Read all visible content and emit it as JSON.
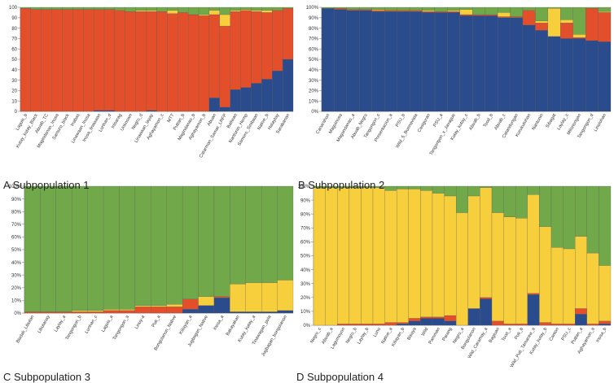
{
  "figure": {
    "colors": {
      "blue": "#2b4c8c",
      "red": "#e24f2a",
      "yellow": "#f7cf3c",
      "green": "#70a84a",
      "axis": "#888888",
      "tick_text": "#333333"
    }
  },
  "chart_data": [
    {
      "type": "bar",
      "stacked": true,
      "caption": "A Subpopulation 1",
      "series_order": [
        "blue",
        "red",
        "yellow",
        "green"
      ],
      "ylim": [
        0,
        100
      ],
      "yticks": [
        0,
        10,
        20,
        30,
        40,
        50,
        60,
        70,
        80,
        90,
        100
      ],
      "ytick_suffix": "",
      "categories": [
        "Laguis_b",
        "Kutay_kutay_Black",
        "Abuab_TC",
        "Magindanao_Inosa",
        "Samuro_black",
        "Inabas",
        "Linawaan_Inosa",
        "Inosa_linawaan",
        "Lunhan_d",
        "Inisarag",
        "Unknown",
        "Negro_d",
        "Linawaan_layay",
        "Aghayamon_c",
        "MTT",
        "Puttan_b",
        "Magindanao_b",
        "Aghayamon_b",
        "Abuan",
        "Catarman_Samar_LRFP",
        "Baliwan",
        "Nantonin_Hemp",
        "Samuro_Sinibaan",
        "Native_b",
        "Halaytay",
        "Sarabanan"
      ],
      "values": {
        "blue": [
          0,
          0,
          0,
          0,
          0,
          0,
          0,
          1,
          1,
          0,
          0,
          0,
          1,
          0,
          0,
          0,
          0,
          0,
          13,
          4,
          21,
          23,
          27,
          31,
          39,
          50
        ],
        "red": [
          99,
          98,
          98,
          98,
          98,
          98,
          98,
          97,
          97,
          97,
          96,
          96,
          95,
          96,
          94,
          95,
          93,
          92,
          80,
          78,
          75,
          74,
          69,
          64,
          58,
          49
        ],
        "yellow": [
          0,
          0,
          0,
          0,
          0,
          0,
          0,
          0,
          0,
          0,
          0,
          1,
          1,
          0,
          3,
          0,
          0,
          1,
          4,
          11,
          1,
          1,
          1,
          2,
          0,
          0
        ],
        "green": [
          1,
          2,
          2,
          2,
          2,
          2,
          2,
          2,
          2,
          3,
          4,
          3,
          3,
          4,
          3,
          5,
          7,
          7,
          3,
          7,
          3,
          2,
          3,
          3,
          3,
          1
        ]
      }
    },
    {
      "type": "bar",
      "stacked": true,
      "caption": "B Subpopulation 2",
      "series_order": [
        "blue",
        "red",
        "yellow",
        "green"
      ],
      "ylim": [
        0,
        100
      ],
      "yticks": [
        0,
        10,
        20,
        30,
        40,
        50,
        60,
        70,
        80,
        90,
        100
      ],
      "ytick_suffix": "%",
      "categories": [
        "Canarahon",
        "Maguinosa",
        "Magandanao_a",
        "Abuab_Negro",
        "Tangongon_c",
        "Presentacion_a",
        "PSU_b",
        "Wild_5_Buenavista",
        "Casiguran",
        "PSU_a",
        "Tangongon_x_Javague",
        "Kutay_kutay_c",
        "Abuab_b",
        "Tood_b",
        "Abuab_c",
        "Catandungan",
        "Kurukutuhan",
        "Nantonin",
        "Sibagat",
        "Laylay_c",
        "Milonongan",
        "Tangongon_d",
        "Linolohan"
      ],
      "values": {
        "blue": [
          99,
          98,
          97,
          97,
          96,
          96,
          96,
          96,
          95,
          95,
          95,
          92,
          92,
          92,
          90,
          90,
          83,
          78,
          72,
          70,
          70,
          68,
          67
        ],
        "red": [
          0,
          1,
          1,
          1,
          1,
          1,
          1,
          1,
          1,
          1,
          1,
          1,
          1,
          1,
          1,
          1,
          14,
          7,
          0,
          15,
          1,
          31,
          28
        ],
        "yellow": [
          0,
          0,
          0,
          0,
          1,
          0,
          0,
          0,
          1,
          0,
          1,
          5,
          0,
          0,
          4,
          0,
          0,
          2,
          27,
          3,
          3,
          0,
          1
        ],
        "green": [
          1,
          1,
          2,
          2,
          2,
          3,
          3,
          3,
          3,
          4,
          3,
          2,
          7,
          7,
          5,
          9,
          3,
          13,
          1,
          12,
          26,
          1,
          4
        ]
      }
    },
    {
      "type": "bar",
      "stacked": true,
      "caption": "C Subpopulation 3",
      "series_order": [
        "blue",
        "red",
        "yellow",
        "green"
      ],
      "ylim": [
        0,
        100
      ],
      "yticks": [
        0,
        10,
        20,
        30,
        40,
        50,
        60,
        70,
        80,
        90,
        100
      ],
      "ytick_suffix": "%",
      "categories": [
        "Bisdak_Libutan",
        "Libutanay",
        "Laylay_a",
        "Tangongon_b",
        "Lunhan_c",
        "Laguis_a",
        "Tangongon_a",
        "Linuy-a",
        "Puti_a",
        "Bongolanon_Native",
        "Kiliayan_a",
        "Jugbagan_Native",
        "Inosa_a",
        "Bakayakan",
        "Kutay_kutay_a",
        "Tinawagan_pula",
        "Jugbagan_bongolanon"
      ],
      "values": {
        "blue": [
          0,
          0,
          0,
          0,
          0,
          0,
          0,
          0,
          0,
          0,
          3,
          6,
          12,
          1,
          1,
          1,
          2
        ],
        "red": [
          1,
          1,
          1,
          1,
          1,
          2,
          2,
          5,
          5,
          5,
          8,
          0,
          1,
          0,
          0,
          0,
          0
        ],
        "yellow": [
          0,
          0,
          0,
          1,
          1,
          1,
          1,
          1,
          1,
          2,
          0,
          7,
          0,
          22,
          23,
          23,
          24
        ],
        "green": [
          99,
          99,
          99,
          98,
          98,
          97,
          97,
          94,
          94,
          93,
          89,
          87,
          87,
          77,
          76,
          76,
          74
        ]
      }
    },
    {
      "type": "bar",
      "stacked": true,
      "caption": "D Subpopulation 4",
      "series_order": [
        "blue",
        "red",
        "yellow",
        "green"
      ],
      "ylim": [
        0,
        100
      ],
      "yticks": [
        0,
        10,
        20,
        30,
        40,
        50,
        60,
        70,
        80,
        90,
        100
      ],
      "ytick_suffix": "%",
      "categories": [
        "Negro_c",
        "Abuab_a",
        "Lagumoyon",
        "Negro_b",
        "Laylay_b",
        "Luno",
        "Native_a",
        "Kiliayan_b",
        "Bisaya",
        "Wild",
        "Pamman",
        "Parang",
        "Negro_a",
        "Bongolanon",
        "Wild_Caramay_a",
        "Bagiuan",
        "Tood_a",
        "Puti_b",
        "Wild_Puti_Tamaraw_a",
        "Kutay_kutay_b",
        "Canton",
        "PSU_c",
        "Puttan_a",
        "Aghayamon_a",
        "Inosa_b"
      ],
      "values": {
        "blue": [
          0,
          0,
          0,
          0,
          0,
          0,
          0,
          1,
          3,
          5,
          5,
          3,
          0,
          12,
          19,
          0,
          0,
          0,
          22,
          0,
          0,
          0,
          8,
          0,
          1
        ],
        "red": [
          0,
          0,
          1,
          1,
          1,
          1,
          2,
          1,
          2,
          1,
          1,
          4,
          0,
          0,
          1,
          3,
          1,
          1,
          1,
          2,
          1,
          1,
          4,
          1,
          2
        ],
        "yellow": [
          99,
          99,
          98,
          98,
          98,
          98,
          95,
          96,
          93,
          91,
          89,
          86,
          81,
          81,
          79,
          78,
          77,
          76,
          71,
          69,
          55,
          54,
          52,
          51,
          40
        ],
        "green": [
          1,
          1,
          1,
          1,
          1,
          1,
          3,
          2,
          2,
          3,
          5,
          7,
          19,
          7,
          1,
          19,
          22,
          23,
          6,
          29,
          44,
          45,
          36,
          48,
          57
        ]
      }
    }
  ]
}
